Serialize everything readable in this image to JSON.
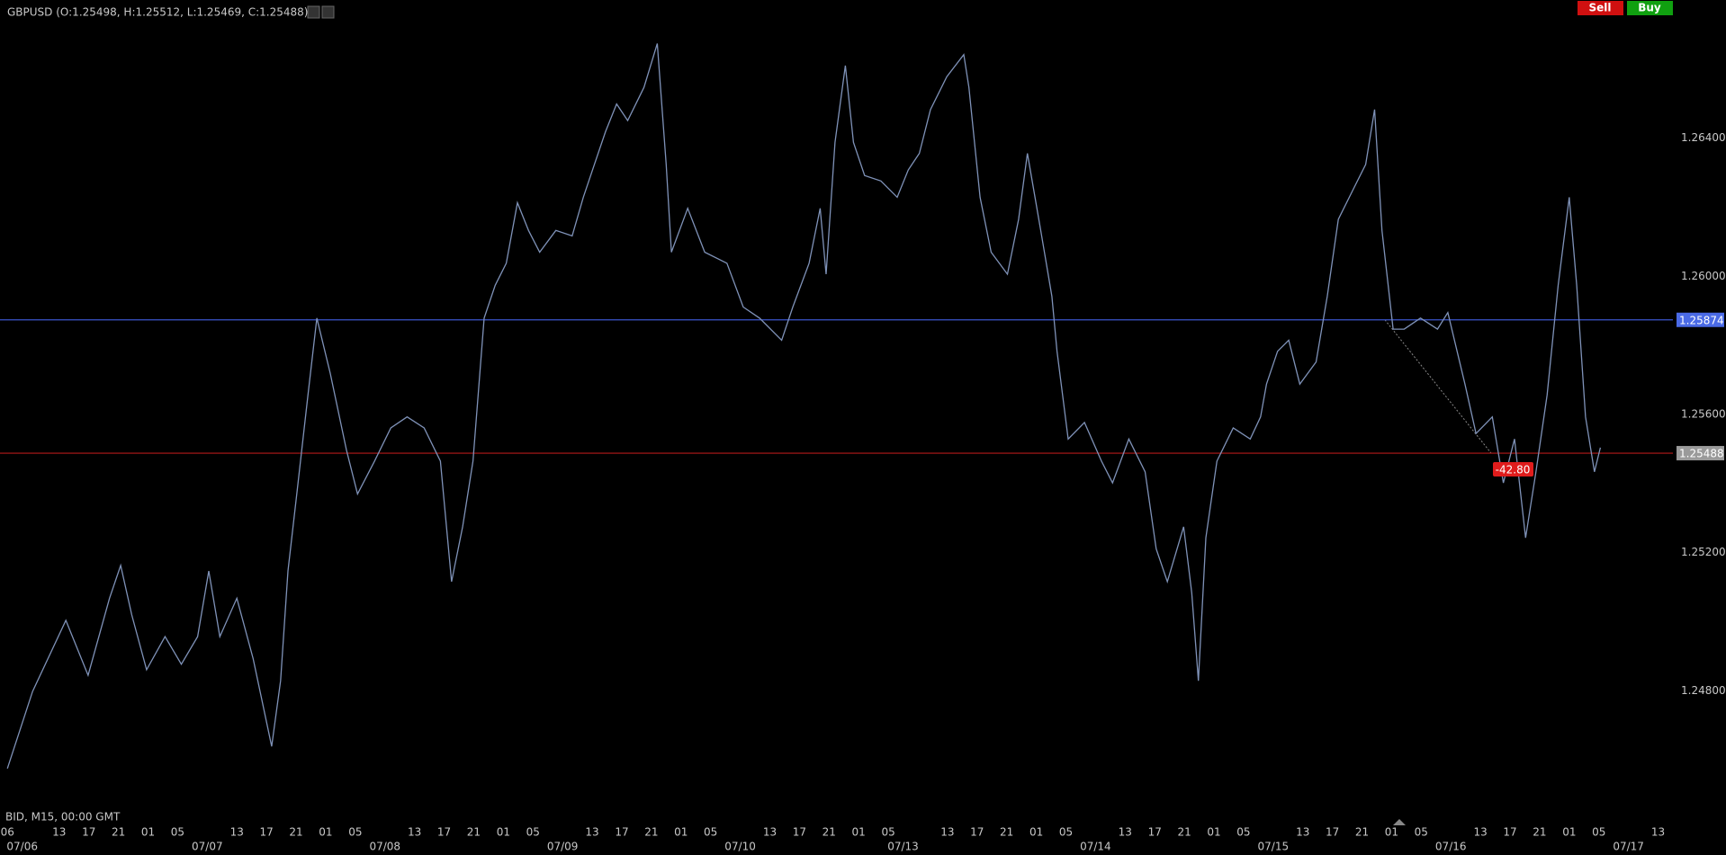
{
  "header": {
    "title": "GBPUSD (O:1.25498, H:1.25512, L:1.25469, C:1.25488)",
    "sell": "Sell",
    "buy": "Buy"
  },
  "chart_data": {
    "type": "line",
    "footer": "BID, M15, 00:00 GMT",
    "color": "#7f92b8",
    "x": [
      0,
      3.4,
      7.9,
      10.9,
      13.8,
      15.3,
      16.8,
      18.8,
      21.3,
      23.5,
      25.7,
      27.2,
      28.7,
      31,
      33.2,
      35.7,
      36.9,
      37.9,
      39.1,
      40.6,
      41.8,
      43.6,
      45.8,
      47.3,
      49.6,
      51.8,
      54,
      56.3,
      58.5,
      60,
      61.5,
      62.9,
      64.4,
      65.9,
      67.4,
      68.9,
      70.4,
      71.9,
      74.1,
      76.3,
      77.8,
      79.3,
      80.8,
      82.3,
      83.8,
      86,
      87.8,
      89,
      89.7,
      91.9,
      94.2,
      97.2,
      99.4,
      101.6,
      104.6,
      106.1,
      108.3,
      109.8,
      110.6,
      111.8,
      113.2,
      114.3,
      115.8,
      118,
      120.2,
      121.7,
      123.2,
      124.7,
      126.9,
      129.2,
      129.9,
      131.4,
      132.9,
      135.1,
      136.6,
      137.8,
      139.6,
      141.1,
      141.8,
      143.3,
      145.5,
      147.8,
      149.3,
      151.5,
      153.7,
      155.2,
      156.7,
      158.9,
      160,
      160.9,
      161.9,
      163.4,
      165.6,
      167.9,
      169.3,
      170.1,
      171.6,
      173.1,
      174.6,
      176.8,
      178.3,
      179.8,
      182,
      183.5,
      184.7,
      185.7,
      187.2,
      188.7,
      190.9,
      193.2,
      194.6,
      196.9,
      198.4,
      200.6,
      202.1,
      203.6,
      205.1,
      206.5,
      208,
      209.5,
      211,
      212,
      213.2,
      214.4,
      215.2
    ],
    "values": [
      1.24575,
      1.24798,
      1.25004,
      1.24845,
      1.25068,
      1.25163,
      1.2502,
      1.24861,
      1.24957,
      1.24877,
      1.24957,
      1.25147,
      1.24957,
      1.25068,
      1.24893,
      1.24639,
      1.24829,
      1.25147,
      1.2537,
      1.25656,
      1.25879,
      1.2572,
      1.25497,
      1.2537,
      1.25465,
      1.25561,
      1.25593,
      1.25561,
      1.25465,
      1.25116,
      1.25275,
      1.25465,
      1.25879,
      1.25974,
      1.26038,
      1.26213,
      1.26133,
      1.2607,
      1.26133,
      1.26117,
      1.26229,
      1.26324,
      1.26419,
      1.26499,
      1.26451,
      1.26547,
      1.26674,
      1.26324,
      1.2607,
      1.26197,
      1.2607,
      1.26038,
      1.25911,
      1.25879,
      1.25815,
      1.25911,
      1.26038,
      1.26197,
      1.26006,
      1.26388,
      1.2661,
      1.26388,
      1.26292,
      1.26276,
      1.26229,
      1.26308,
      1.26356,
      1.26483,
      1.26578,
      1.26642,
      1.26547,
      1.26229,
      1.2607,
      1.26006,
      1.26165,
      1.26356,
      1.26133,
      1.25942,
      1.25783,
      1.25529,
      1.25577,
      1.25465,
      1.25402,
      1.25529,
      1.25434,
      1.25211,
      1.25116,
      1.25275,
      1.25084,
      1.24829,
      1.25243,
      1.25465,
      1.25561,
      1.25529,
      1.25593,
      1.25688,
      1.25783,
      1.25815,
      1.25688,
      1.25752,
      1.25942,
      1.26165,
      1.2626,
      1.26324,
      1.26483,
      1.26133,
      1.25847,
      1.25847,
      1.25879,
      1.25847,
      1.25895,
      1.25688,
      1.25545,
      1.25593,
      1.25402,
      1.25529,
      1.25243,
      1.25434,
      1.25656,
      1.25974,
      1.26229,
      1.25974,
      1.25593,
      1.25434,
      1.25504
    ],
    "xlim": [
      -1,
      225
    ],
    "xticks": [
      {
        "value": 0,
        "label": "06"
      },
      {
        "value": 7,
        "label": "13"
      },
      {
        "value": 11,
        "label": "17"
      },
      {
        "value": 15,
        "label": "21"
      },
      {
        "value": 19,
        "label": "01"
      },
      {
        "value": 23,
        "label": "05"
      },
      {
        "value": 31,
        "label": "13"
      },
      {
        "value": 35,
        "label": "17"
      },
      {
        "value": 39,
        "label": "21"
      },
      {
        "value": 43,
        "label": "01"
      },
      {
        "value": 47,
        "label": "05"
      },
      {
        "value": 55,
        "label": "13"
      },
      {
        "value": 59,
        "label": "17"
      },
      {
        "value": 63,
        "label": "21"
      },
      {
        "value": 67,
        "label": "01"
      },
      {
        "value": 71,
        "label": "05"
      },
      {
        "value": 79,
        "label": "13"
      },
      {
        "value": 83,
        "label": "17"
      },
      {
        "value": 87,
        "label": "21"
      },
      {
        "value": 91,
        "label": "01"
      },
      {
        "value": 95,
        "label": "05"
      },
      {
        "value": 103,
        "label": "13"
      },
      {
        "value": 107,
        "label": "17"
      },
      {
        "value": 111,
        "label": "21"
      },
      {
        "value": 115,
        "label": "01"
      },
      {
        "value": 119,
        "label": "05"
      },
      {
        "value": 127,
        "label": "13"
      },
      {
        "value": 131,
        "label": "17"
      },
      {
        "value": 135,
        "label": "21"
      },
      {
        "value": 139,
        "label": "01"
      },
      {
        "value": 143,
        "label": "05"
      },
      {
        "value": 151,
        "label": "13"
      },
      {
        "value": 155,
        "label": "17"
      },
      {
        "value": 159,
        "label": "21"
      },
      {
        "value": 163,
        "label": "01"
      },
      {
        "value": 167,
        "label": "05"
      },
      {
        "value": 175,
        "label": "13"
      },
      {
        "value": 179,
        "label": "17"
      },
      {
        "value": 183,
        "label": "21"
      },
      {
        "value": 187,
        "label": "01"
      },
      {
        "value": 191,
        "label": "05"
      },
      {
        "value": 199,
        "label": "13"
      },
      {
        "value": 203,
        "label": "17"
      },
      {
        "value": 207,
        "label": "21"
      },
      {
        "value": 211,
        "label": "01"
      },
      {
        "value": 215,
        "label": "05"
      },
      {
        "value": 223,
        "label": "13"
      }
    ],
    "date_ticks": [
      {
        "value": 2,
        "label": "07/06"
      },
      {
        "value": 27,
        "label": "07/07"
      },
      {
        "value": 51,
        "label": "07/08"
      },
      {
        "value": 75,
        "label": "07/09"
      },
      {
        "value": 99,
        "label": "07/10"
      },
      {
        "value": 121,
        "label": "07/13"
      },
      {
        "value": 147,
        "label": "07/14"
      },
      {
        "value": 171,
        "label": "07/15"
      },
      {
        "value": 195,
        "label": "07/16"
      },
      {
        "value": 219,
        "label": "07/17"
      }
    ],
    "ylim": [
      1.2446,
      1.268
    ],
    "yticks": [
      {
        "value": 1.264,
        "label": "1.26400"
      },
      {
        "value": 1.26,
        "label": "1.26000"
      },
      {
        "value": 1.256,
        "label": "1.25600"
      },
      {
        "value": 1.252,
        "label": "1.25200"
      },
      {
        "value": 1.248,
        "label": "1.24800"
      }
    ],
    "levels": [
      {
        "value": 1.25874,
        "color": "#3a55cc",
        "label_color": "#4a6ae6"
      },
      {
        "value": 1.25488,
        "color": "#b51a1a",
        "label_color": "#9a9a9a"
      }
    ],
    "annotation": {
      "value": -42.8,
      "label": "-42.80",
      "color": "#e01c1c"
    }
  }
}
